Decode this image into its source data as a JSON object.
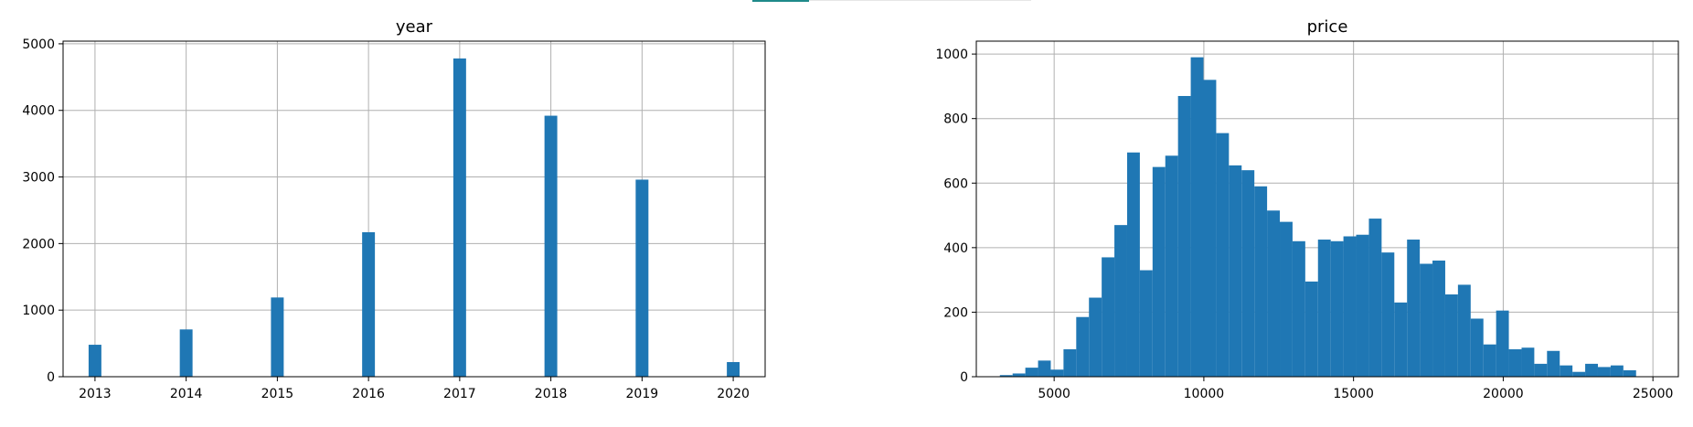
{
  "colors": {
    "bar": "#1f77b4",
    "grid": "#b0b0b0",
    "accent_strip": "#1f8a8a"
  },
  "chart_data": [
    {
      "type": "bar",
      "title": "year",
      "xlabel": "",
      "ylabel": "",
      "grid": true,
      "xlim": [
        2012.65,
        2020.35
      ],
      "ylim": [
        0,
        5040
      ],
      "bin_width": 0.14,
      "x_ticks": [
        2013,
        2014,
        2015,
        2016,
        2017,
        2018,
        2019,
        2020
      ],
      "x_tick_labels": [
        "2013",
        "2014",
        "2015",
        "2016",
        "2017",
        "2018",
        "2019",
        "2020"
      ],
      "y_ticks": [
        0,
        1000,
        2000,
        3000,
        4000,
        5000
      ],
      "y_tick_labels": [
        "0",
        "1000",
        "2000",
        "3000",
        "4000",
        "5000"
      ],
      "x": [
        2013,
        2014,
        2015,
        2016,
        2017,
        2018,
        2019,
        2020
      ],
      "values": [
        480,
        710,
        1190,
        2170,
        4780,
        3920,
        2960,
        220
      ]
    },
    {
      "type": "bar",
      "title": "price",
      "xlabel": "",
      "ylabel": "",
      "grid": true,
      "xlim": [
        2400,
        25850
      ],
      "ylim": [
        0,
        1040
      ],
      "bin_width": 425,
      "x_ticks": [
        5000,
        10000,
        15000,
        20000,
        25000
      ],
      "x_tick_labels": [
        "5000",
        "10000",
        "15000",
        "20000",
        "25000"
      ],
      "y_ticks": [
        0,
        200,
        400,
        600,
        800,
        1000
      ],
      "y_tick_labels": [
        "0",
        "200",
        "400",
        "600",
        "800",
        "1000"
      ],
      "x": [
        3400,
        3825,
        4250,
        4675,
        5100,
        5525,
        5950,
        6375,
        6800,
        7225,
        7650,
        8075,
        8500,
        8925,
        9350,
        9775,
        10200,
        10625,
        11050,
        11475,
        11900,
        12325,
        12750,
        13175,
        13600,
        14025,
        14450,
        14875,
        15300,
        15725,
        16150,
        16575,
        17000,
        17425,
        17850,
        18275,
        18700,
        19125,
        19550,
        19975,
        20400,
        20825,
        21250,
        21675,
        22100,
        22525,
        22950,
        23375,
        23800,
        24225
      ],
      "values": [
        5,
        10,
        28,
        50,
        22,
        85,
        185,
        245,
        370,
        470,
        695,
        330,
        650,
        685,
        870,
        990,
        920,
        755,
        655,
        640,
        590,
        515,
        480,
        420,
        295,
        425,
        420,
        435,
        440,
        490,
        385,
        230,
        425,
        350,
        360,
        255,
        285,
        180,
        100,
        205,
        85,
        90,
        40,
        80,
        35,
        15,
        40,
        30,
        35,
        20
      ]
    }
  ]
}
